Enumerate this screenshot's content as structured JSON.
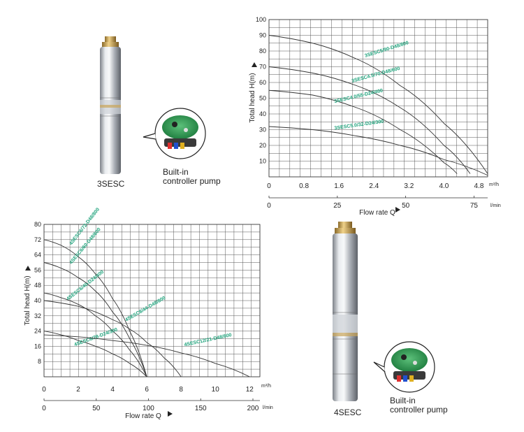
{
  "captions": {
    "pump1": "3SESC",
    "pump2": "4SESC",
    "builtin1_line1": "Built-in",
    "builtin1_line2": "controller pump",
    "builtin2_line1": "Built-in",
    "builtin2_line2": "controller pump"
  },
  "colors": {
    "grid": "#555555",
    "curve": "#333333",
    "label": "#1fa37c",
    "pump_steel": "#b8bcc2",
    "pump_brass": "#c9a55a"
  },
  "chart_data": [
    {
      "type": "line",
      "ylabel": "Total head H(m)",
      "xlabel": "Flow rate Q",
      "x_unit": "m³/h",
      "x2_unit": "l/min",
      "xlim": [
        0,
        5.0
      ],
      "ylim": [
        0,
        100
      ],
      "x_ticks": [
        "0",
        "0.8",
        "1.6",
        "2.4",
        "3.2",
        "4.0",
        "4.8"
      ],
      "x_tick_values": [
        0,
        0.8,
        1.6,
        2.4,
        3.2,
        4.0,
        4.8
      ],
      "x2_ticks": [
        "0",
        "25",
        "50",
        "75"
      ],
      "x2_tick_values": [
        0,
        25,
        50,
        75
      ],
      "y_ticks": [
        "10",
        "20",
        "30",
        "40",
        "50",
        "60",
        "70",
        "80",
        "90",
        "100"
      ],
      "y_tick_values": [
        10,
        20,
        30,
        40,
        50,
        60,
        70,
        80,
        90,
        100
      ],
      "grid": true,
      "series": [
        {
          "name": "3SESC5/90-D48/800",
          "x": [
            0,
            1.0,
            2.0,
            3.0,
            4.0,
            5.0
          ],
          "y": [
            90,
            85,
            75,
            58,
            34,
            2
          ],
          "label_pos": [
            2.2,
            76
          ],
          "label_angle": -17
        },
        {
          "name": "3SESC4.5/70-D48/600",
          "x": [
            0,
            1.0,
            2.0,
            3.0,
            4.0,
            4.6
          ],
          "y": [
            70,
            66,
            58,
            44,
            20,
            2
          ],
          "label_pos": [
            1.9,
            60
          ],
          "label_angle": -15
        },
        {
          "name": "3SESC4.0/55-D24/400",
          "x": [
            0,
            1.0,
            2.0,
            3.0,
            4.0,
            4.3
          ],
          "y": [
            55,
            52,
            44,
            30,
            9,
            2
          ],
          "label_pos": [
            1.5,
            47
          ],
          "label_angle": -13
        },
        {
          "name": "3SESC5.0/32-D24/300",
          "x": [
            0,
            1.0,
            2.0,
            3.0,
            4.0,
            5.0
          ],
          "y": [
            32,
            30,
            26,
            20,
            11,
            1
          ],
          "label_pos": [
            1.5,
            30
          ],
          "label_angle": -8
        }
      ]
    },
    {
      "type": "line",
      "ylabel": "Total head H(m)",
      "xlabel": "Flow rate Q",
      "x_unit": "m³/h",
      "x2_unit": "l/min",
      "xlim": [
        0,
        12.6
      ],
      "ylim": [
        0,
        80
      ],
      "x_ticks": [
        "0",
        "2",
        "4",
        "6",
        "8",
        "10",
        "12"
      ],
      "x_tick_values": [
        0,
        2,
        4,
        6,
        8,
        10,
        12
      ],
      "x2_ticks": [
        "0",
        "50",
        "100",
        "150",
        "200"
      ],
      "x2_tick_values": [
        0,
        50,
        100,
        150,
        200
      ],
      "y_ticks": [
        "8",
        "16",
        "24",
        "32",
        "40",
        "48",
        "56",
        "64",
        "72",
        "80"
      ],
      "y_tick_values": [
        8,
        16,
        24,
        32,
        40,
        48,
        56,
        64,
        72,
        80
      ],
      "grid": true,
      "series": [
        {
          "name": "4SESC6/72-D48/800",
          "x": [
            0,
            1,
            2,
            3,
            4,
            5,
            6
          ],
          "y": [
            72,
            69,
            63,
            54,
            41,
            24,
            0
          ],
          "label_pos": [
            1.6,
            69
          ],
          "label_angle": -52
        },
        {
          "name": "4SESC6/60-D48/600",
          "x": [
            0,
            1,
            2,
            3,
            4,
            5,
            6
          ],
          "y": [
            60,
            57,
            52,
            45,
            34,
            20,
            0
          ],
          "label_pos": [
            1.6,
            59
          ],
          "label_angle": -50
        },
        {
          "name": "4SESC6/40-D24/400",
          "x": [
            0,
            1,
            2,
            3,
            4,
            5,
            6
          ],
          "y": [
            44,
            41.5,
            38,
            32,
            24,
            14,
            0
          ],
          "label_pos": [
            1.4,
            40
          ],
          "label_angle": -38
        },
        {
          "name": "4SESC6/28-D24/300",
          "x": [
            0,
            1,
            2,
            3,
            4,
            5,
            6
          ],
          "y": [
            24,
            22,
            19,
            16,
            12,
            7,
            0
          ],
          "label_pos": [
            1.8,
            16
          ],
          "label_angle": -20
        },
        {
          "name": "4SESC8/44-D48/800",
          "x": [
            0,
            2,
            4,
            5,
            6,
            7,
            8
          ],
          "y": [
            40,
            37,
            30,
            25,
            18,
            10,
            0
          ],
          "label_pos": [
            4.8,
            29
          ],
          "label_angle": -30
        },
        {
          "name": "4SESC12/21-D48/800",
          "x": [
            0,
            2,
            4,
            6,
            8,
            10,
            12
          ],
          "y": [
            22,
            21,
            19,
            16.5,
            12.5,
            7,
            0
          ],
          "label_pos": [
            8.2,
            16
          ],
          "label_angle": -12
        }
      ]
    }
  ]
}
